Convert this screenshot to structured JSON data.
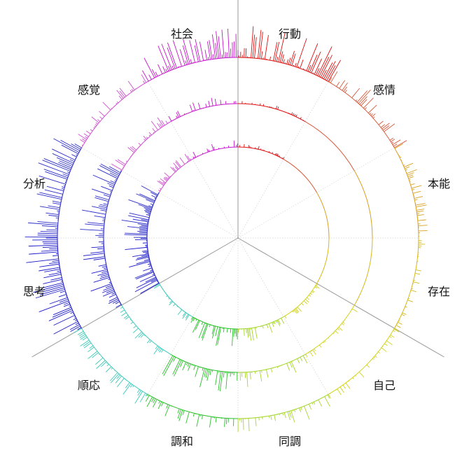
{
  "chart_data": {
    "type": "radial-bar",
    "categories": [
      "行動",
      "感情",
      "本能",
      "存在",
      "自己",
      "同調",
      "調和",
      "順応",
      "思考",
      "分析",
      "感覚",
      "社会"
    ],
    "colors": [
      "#e01010",
      "#d85a3a",
      "#d8a020",
      "#d6b81a",
      "#d2d41c",
      "#a6d62a",
      "#2cc02c",
      "#3ccab8",
      "#1a18c8",
      "#2a2ac8",
      "#cf4fcf",
      "#c418c8"
    ],
    "rings": [
      {
        "name": "inner",
        "intensity": [
          1,
          0,
          0,
          0,
          2,
          4,
          6,
          3,
          8,
          9,
          3,
          2
        ]
      },
      {
        "name": "middle",
        "intensity": [
          1,
          0,
          0,
          0,
          2,
          5,
          7,
          3,
          8,
          8,
          4,
          3
        ]
      },
      {
        "name": "outer",
        "intensity": [
          9,
          5,
          3,
          2,
          2,
          4,
          4,
          4,
          9,
          9,
          3,
          8
        ]
      }
    ],
    "grid": true
  }
}
